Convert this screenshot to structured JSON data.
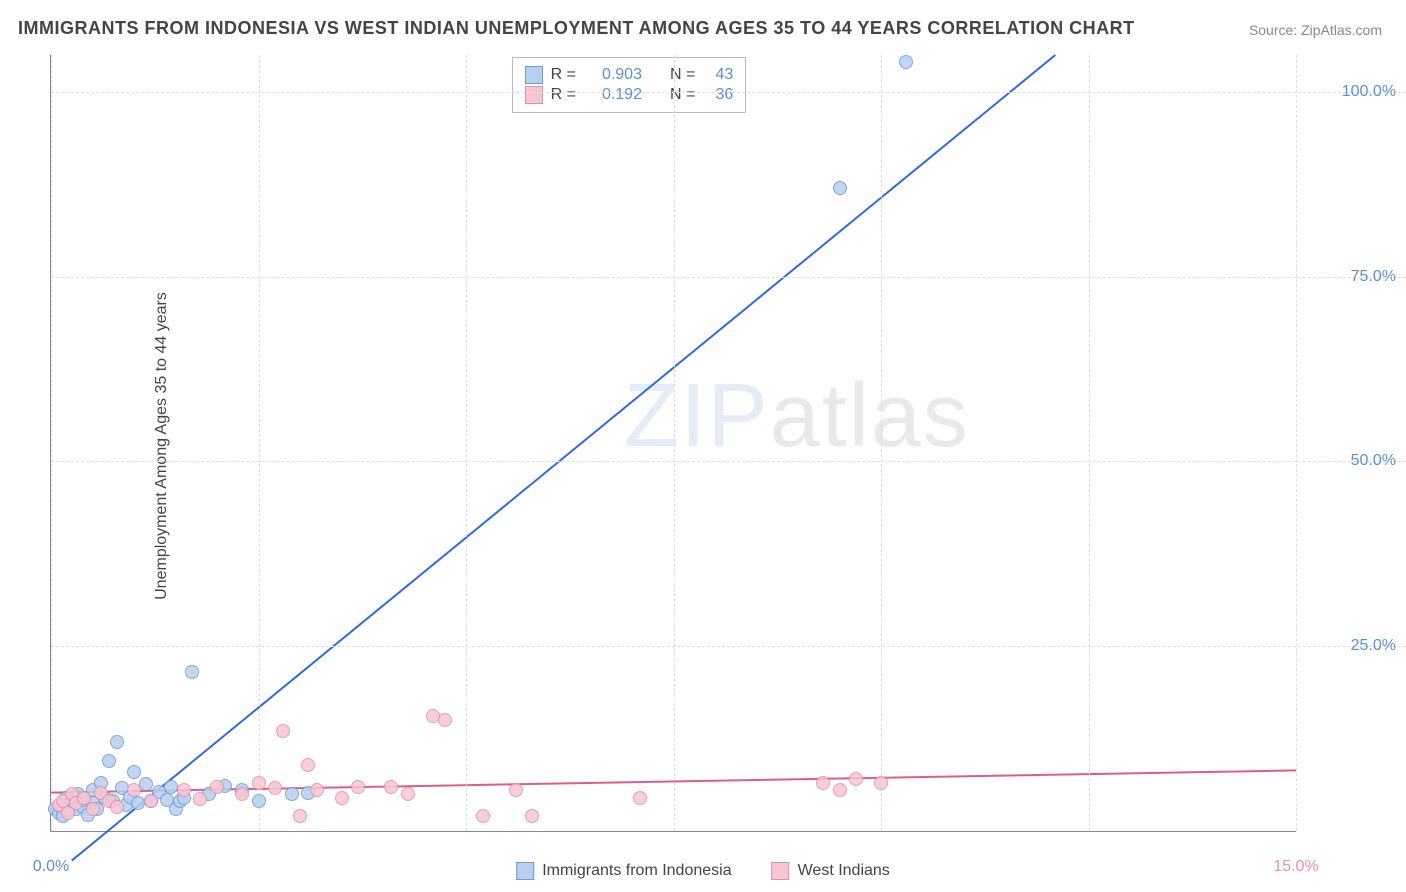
{
  "title": "IMMIGRANTS FROM INDONESIA VS WEST INDIAN UNEMPLOYMENT AMONG AGES 35 TO 44 YEARS CORRELATION CHART",
  "source": "Source: ZipAtlas.com",
  "ylabel": "Unemployment Among Ages 35 to 44 years",
  "watermark_a": "ZIP",
  "watermark_b": "atlas",
  "chart": {
    "type": "scatter",
    "xlim": [
      0,
      15
    ],
    "ylim": [
      0,
      105
    ],
    "x_ticks": [
      0,
      2.5,
      5,
      7.5,
      10,
      12.5,
      15
    ],
    "x_tick_labels": {
      "0": "0.0%",
      "15": "15.0%"
    },
    "y_ticks": [
      25,
      50,
      75,
      100
    ],
    "y_tick_labels": {
      "25": "25.0%",
      "50": "50.0%",
      "75": "75.0%",
      "100": "100.0%"
    },
    "grid_color": "#dddddd",
    "background_color": "#ffffff",
    "tick_blue": "#5b8fd6",
    "tick_pink": "#e68fa8",
    "marker_radius": 7,
    "series": [
      {
        "name": "Immigrants from Indonesia",
        "fill": "#b8d0ef",
        "stroke": "#6a9bd8",
        "line_color": "#2e6be0",
        "R": "0.903",
        "N": "43",
        "trend": {
          "x1": 0.25,
          "y1": -4,
          "x2": 12.1,
          "y2": 105
        },
        "points": [
          [
            0.05,
            3.0
          ],
          [
            0.1,
            2.5
          ],
          [
            0.12,
            3.2
          ],
          [
            0.15,
            2.0
          ],
          [
            0.18,
            4.5
          ],
          [
            0.2,
            3.5
          ],
          [
            0.22,
            2.8
          ],
          [
            0.25,
            4.0
          ],
          [
            0.3,
            3.0
          ],
          [
            0.32,
            5.0
          ],
          [
            0.38,
            3.3
          ],
          [
            0.4,
            4.2
          ],
          [
            0.45,
            2.2
          ],
          [
            0.5,
            5.5
          ],
          [
            0.5,
            3.8
          ],
          [
            0.55,
            3.0
          ],
          [
            0.6,
            6.5
          ],
          [
            0.65,
            4.5
          ],
          [
            0.7,
            9.5
          ],
          [
            0.75,
            4.0
          ],
          [
            0.8,
            12.0
          ],
          [
            0.85,
            5.8
          ],
          [
            0.9,
            3.5
          ],
          [
            0.95,
            4.6
          ],
          [
            1.0,
            8.0
          ],
          [
            1.05,
            3.8
          ],
          [
            1.15,
            6.3
          ],
          [
            1.2,
            4.0
          ],
          [
            1.3,
            5.3
          ],
          [
            1.4,
            4.2
          ],
          [
            1.45,
            6.0
          ],
          [
            1.5,
            3.0
          ],
          [
            1.55,
            4.0
          ],
          [
            1.6,
            4.5
          ],
          [
            1.7,
            21.5
          ],
          [
            1.9,
            5.0
          ],
          [
            2.1,
            6.1
          ],
          [
            2.3,
            5.5
          ],
          [
            2.5,
            4.0
          ],
          [
            2.9,
            5.0
          ],
          [
            3.1,
            5.2
          ],
          [
            9.5,
            87.0
          ],
          [
            10.3,
            104.0
          ]
        ]
      },
      {
        "name": "West Indians",
        "fill": "#f6c6d3",
        "stroke": "#e68fa8",
        "line_color": "#e05c88",
        "R": "0.192",
        "N": "36",
        "trend": {
          "x1": 0,
          "y1": 5.2,
          "x2": 15,
          "y2": 8.2
        },
        "points": [
          [
            0.1,
            3.5
          ],
          [
            0.15,
            4.0
          ],
          [
            0.2,
            2.5
          ],
          [
            0.25,
            5.0
          ],
          [
            0.3,
            3.8
          ],
          [
            0.4,
            4.5
          ],
          [
            0.5,
            3.0
          ],
          [
            0.6,
            5.2
          ],
          [
            0.7,
            4.0
          ],
          [
            0.8,
            3.2
          ],
          [
            1.0,
            5.5
          ],
          [
            1.2,
            4.0
          ],
          [
            1.6,
            5.5
          ],
          [
            1.8,
            4.3
          ],
          [
            2.0,
            6.0
          ],
          [
            2.3,
            5.0
          ],
          [
            2.5,
            6.5
          ],
          [
            2.7,
            5.8
          ],
          [
            2.8,
            13.5
          ],
          [
            3.0,
            2.0
          ],
          [
            3.1,
            9.0
          ],
          [
            3.2,
            5.5
          ],
          [
            3.5,
            4.5
          ],
          [
            3.7,
            6.0
          ],
          [
            4.1,
            6.0
          ],
          [
            4.3,
            5.0
          ],
          [
            4.6,
            15.5
          ],
          [
            4.75,
            15.0
          ],
          [
            5.2,
            2.0
          ],
          [
            5.6,
            5.5
          ],
          [
            5.8,
            2.0
          ],
          [
            7.1,
            4.5
          ],
          [
            9.3,
            6.5
          ],
          [
            9.5,
            5.5
          ],
          [
            9.7,
            7.0
          ],
          [
            10.0,
            6.5
          ]
        ]
      }
    ]
  },
  "legend_corr": {
    "labels": {
      "R": "R =",
      "N": "N ="
    }
  }
}
